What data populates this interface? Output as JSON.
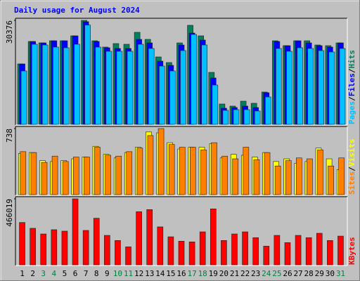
{
  "chart_data": [
    {
      "type": "bar",
      "title": "Daily usage for August 2024",
      "ylim": [
        0,
        30376
      ],
      "yticks": [
        30376
      ],
      "series": [
        {
          "name": "Hits",
          "color": "#00805c",
          "values": [
            17650,
            24220,
            23800,
            24420,
            24420,
            25860,
            30376,
            24420,
            22580,
            23600,
            23400,
            26890,
            24830,
            19700,
            18060,
            23800,
            28940,
            25860,
            15190,
            5950,
            5340,
            6770,
            6160,
            9440,
            24420,
            22990,
            24420,
            24420,
            23190,
            22990,
            23800
          ]
        },
        {
          "name": "Files",
          "color": "#0000ff",
          "values": [
            17650,
            24220,
            23800,
            24420,
            24420,
            25860,
            30000,
            24220,
            22370,
            22170,
            22170,
            24830,
            23800,
            18470,
            17240,
            23190,
            26680,
            24630,
            13550,
            4720,
            4920,
            5340,
            4920,
            9240,
            24220,
            22990,
            24420,
            23800,
            22990,
            22580,
            23800
          ]
        },
        {
          "name": "Pages",
          "color": "#00c0ff",
          "values": [
            15600,
            23400,
            23190,
            22580,
            22370,
            23400,
            29000,
            22580,
            21350,
            21350,
            21350,
            23400,
            22170,
            17030,
            15600,
            21550,
            26270,
            23190,
            11490,
            4100,
            4300,
            4300,
            3900,
            8000,
            22170,
            21350,
            22370,
            22170,
            21550,
            21140,
            22170
          ]
        }
      ]
    },
    {
      "type": "bar",
      "ylim": [
        0,
        738
      ],
      "yticks": [
        738
      ],
      "series": [
        {
          "name": "Visits",
          "color": "#ffff00",
          "values": [
            460,
            470,
            380,
            370,
            380,
            400,
            420,
            540,
            450,
            410,
            470,
            530,
            700,
            690,
            580,
            510,
            530,
            530,
            570,
            410,
            450,
            440,
            420,
            470,
            370,
            400,
            350,
            370,
            520,
            400,
            280
          ]
        },
        {
          "name": "Sites",
          "color": "#ff8000",
          "values": [
            480,
            470,
            360,
            430,
            370,
            420,
            420,
            530,
            440,
            430,
            480,
            520,
            660,
            738,
            560,
            530,
            530,
            500,
            580,
            430,
            400,
            530,
            390,
            470,
            320,
            380,
            410,
            400,
            500,
            320,
            410
          ]
        }
      ]
    },
    {
      "type": "bar",
      "ylim": [
        0,
        466019
      ],
      "yticks": [
        466019
      ],
      "categories": [
        "1",
        "2",
        "3",
        "4",
        "5",
        "6",
        "7",
        "8",
        "9",
        "10",
        "11",
        "12",
        "13",
        "14",
        "15",
        "16",
        "17",
        "18",
        "19",
        "20",
        "21",
        "22",
        "23",
        "24",
        "25",
        "26",
        "27",
        "28",
        "29",
        "30",
        "31"
      ],
      "weekend_categories": [
        "3",
        "4",
        "10",
        "11",
        "17",
        "18",
        "24",
        "25",
        "31"
      ],
      "weekend_label_color": "#008040",
      "series": [
        {
          "name": "KBytes",
          "color": "#ff0000",
          "values": [
            299000,
            258000,
            218000,
            248000,
            238000,
            466019,
            243000,
            329000,
            208000,
            172000,
            127000,
            375000,
            390000,
            268000,
            198000,
            167000,
            162000,
            233000,
            395000,
            172000,
            218000,
            233000,
            192000,
            132000,
            208000,
            157000,
            208000,
            192000,
            223000,
            172000,
            203000
          ]
        }
      ]
    }
  ],
  "separator": "/"
}
